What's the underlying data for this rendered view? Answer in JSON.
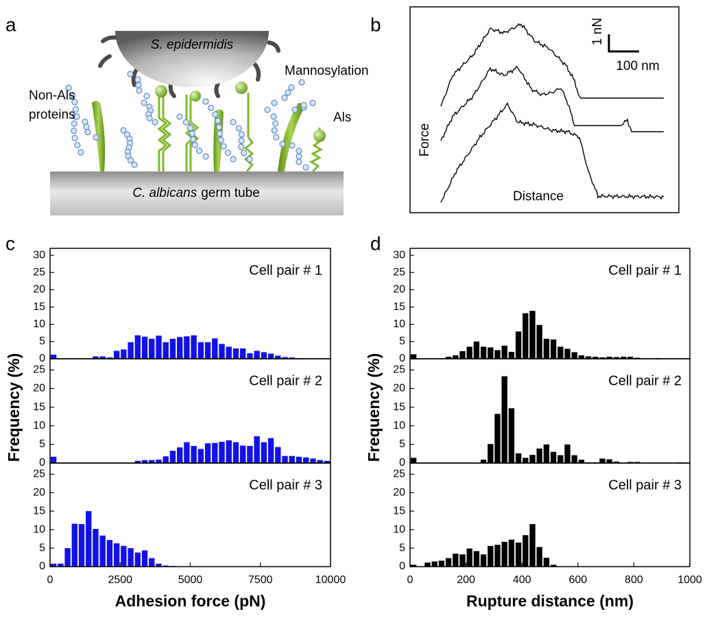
{
  "panel_labels": [
    "a",
    "b",
    "c",
    "d"
  ],
  "diagram": {
    "cell_top": "S. epidermidis",
    "modification": "Mannosylation",
    "proteins": [
      "Non-Als",
      "proteins"
    ],
    "adhesin": "Als",
    "substrate_species": "C. albicans",
    "substrate_rest": "germ tube"
  },
  "force_curves": {
    "y_label": "Force",
    "x_label": "Distance",
    "scale_y": "1 nN",
    "scale_x": "100 nm"
  },
  "chart_data": [
    {
      "type": "histogram",
      "annotation": "Cell pair # 1",
      "color": "#1212e6",
      "bins": [
        0,
        250,
        500,
        750,
        1000,
        1250,
        1500,
        1750,
        2000,
        2250,
        2500,
        2750,
        3000,
        3250,
        3500,
        3750,
        4000,
        4250,
        4500,
        4750,
        5000,
        5250,
        5500,
        5750,
        6000,
        6250,
        6500,
        6750,
        7000,
        7250,
        7500,
        7750,
        8000,
        8250,
        8500,
        8750,
        9000,
        9250,
        9500,
        9750,
        10000
      ],
      "values": [
        1.2,
        0,
        0,
        0,
        0,
        0,
        0.7,
        0.7,
        0.4,
        2.3,
        2.7,
        4.8,
        6.8,
        6.4,
        5.8,
        6.7,
        4.8,
        5.8,
        6.3,
        6.5,
        6.8,
        4.8,
        4.8,
        5.9,
        4.3,
        3.5,
        3.0,
        3.0,
        1.6,
        2.3,
        1.9,
        1.5,
        0.9,
        0.5,
        0.4,
        0.2,
        0,
        0,
        0,
        0
      ],
      "xlim": [
        0,
        10000
      ],
      "ylim": [
        0,
        32
      ],
      "yticks": [
        0,
        5,
        10,
        15,
        20,
        25,
        30
      ]
    },
    {
      "type": "histogram",
      "annotation": "Cell pair # 2",
      "color": "#1212e6",
      "y_label": "Frequency (%)",
      "bins": [
        0,
        250,
        500,
        750,
        1000,
        1250,
        1500,
        1750,
        2000,
        2250,
        2500,
        2750,
        3000,
        3250,
        3500,
        3750,
        4000,
        4250,
        4500,
        4750,
        5000,
        5250,
        5500,
        5750,
        6000,
        6250,
        6500,
        6750,
        7000,
        7250,
        7500,
        7750,
        8000,
        8250,
        8500,
        8750,
        9000,
        9250,
        9500,
        9750,
        10000
      ],
      "values": [
        1.7,
        0,
        0,
        0,
        0,
        0,
        0,
        0,
        0,
        0,
        0,
        0,
        0.6,
        0.8,
        0.8,
        0.9,
        1.8,
        3.3,
        4.2,
        5.6,
        4.6,
        3.8,
        5.3,
        5.4,
        5.7,
        6.1,
        5.6,
        4.7,
        4.6,
        7.2,
        5.6,
        6.7,
        4.3,
        1.9,
        1.9,
        1.7,
        1.5,
        1.2,
        0.8,
        0.6
      ],
      "xlim": [
        0,
        10000
      ],
      "ylim": [
        0,
        28
      ],
      "yticks": [
        0,
        5,
        10,
        15,
        20,
        25
      ]
    },
    {
      "type": "histogram",
      "annotation": "Cell pair # 3",
      "color": "#1212e6",
      "x_label": "Adhesion force (pN)",
      "bins": [
        0,
        250,
        500,
        750,
        1000,
        1250,
        1500,
        1750,
        2000,
        2250,
        2500,
        2750,
        3000,
        3250,
        3500,
        3750,
        4000,
        4250,
        4500,
        4750,
        5000,
        5250,
        5500,
        5750,
        6000,
        6250,
        6500,
        6750,
        7000,
        7250,
        7500,
        7750,
        8000,
        8250,
        8500,
        8750,
        9000,
        9250,
        9500,
        9750,
        10000
      ],
      "values": [
        0.8,
        0.8,
        5.0,
        11.6,
        11.5,
        15.0,
        10.2,
        8.4,
        7.2,
        6.3,
        5.6,
        5.0,
        3.8,
        4.4,
        2.3,
        0.8,
        0.3,
        0.2,
        0.1,
        0,
        0,
        0,
        0,
        0,
        0,
        0,
        0,
        0,
        0,
        0,
        0,
        0,
        0,
        0,
        0,
        0,
        0,
        0,
        0,
        0
      ],
      "xlim": [
        0,
        10000
      ],
      "xticks": [
        0,
        2500,
        5000,
        7500,
        10000
      ],
      "ylim": [
        0,
        28
      ],
      "yticks": [
        0,
        5,
        10,
        15,
        20,
        25
      ]
    },
    {
      "type": "histogram",
      "annotation": "Cell pair # 1",
      "color": "#000000",
      "bins": [
        0,
        25,
        50,
        75,
        100,
        125,
        150,
        175,
        200,
        225,
        250,
        275,
        300,
        325,
        350,
        375,
        400,
        425,
        450,
        475,
        500,
        525,
        550,
        575,
        600,
        625,
        650,
        675,
        700,
        725,
        750,
        775,
        800,
        825,
        850,
        875,
        900,
        925,
        950,
        975,
        1000
      ],
      "values": [
        1.3,
        0,
        0,
        0,
        0,
        0.6,
        1.0,
        2.2,
        3.5,
        5.0,
        3.5,
        3.3,
        2.5,
        3.8,
        2.0,
        7.9,
        13.2,
        13.9,
        9.8,
        5.8,
        5.6,
        3.5,
        2.9,
        1.9,
        1.0,
        0.7,
        0.6,
        0.4,
        0.6,
        0.5,
        0.6,
        0.6,
        0.3,
        0.1,
        0,
        0.2,
        0,
        0,
        0.1,
        0
      ],
      "xlim": [
        0,
        1000
      ],
      "ylim": [
        0,
        32
      ],
      "yticks": [
        0,
        5,
        10,
        15,
        20,
        25,
        30
      ]
    },
    {
      "type": "histogram",
      "annotation": "Cell pair # 2",
      "color": "#000000",
      "y_label": "Frequency (%)",
      "bins": [
        0,
        25,
        50,
        75,
        100,
        125,
        150,
        175,
        200,
        225,
        250,
        275,
        300,
        325,
        350,
        375,
        400,
        425,
        450,
        475,
        500,
        525,
        550,
        575,
        600,
        625,
        650,
        675,
        700,
        725,
        750,
        775,
        800,
        825,
        850,
        875,
        900,
        925,
        950,
        975,
        1000
      ],
      "values": [
        1.4,
        0,
        0,
        0,
        0,
        0,
        0,
        0,
        0,
        0,
        0.9,
        5.1,
        13.2,
        23.3,
        14.7,
        2.6,
        1.4,
        2.2,
        3.9,
        5.0,
        3.0,
        2.1,
        5.0,
        2.1,
        0.9,
        0.2,
        0.2,
        1.2,
        1.0,
        0.4,
        0,
        0.3,
        0.3,
        0,
        0,
        0,
        0,
        0,
        0.2,
        0
      ],
      "xlim": [
        0,
        1000
      ],
      "ylim": [
        0,
        28
      ],
      "yticks": [
        0,
        5,
        10,
        15,
        20,
        25
      ]
    },
    {
      "type": "histogram",
      "annotation": "Cell pair # 3",
      "color": "#000000",
      "x_label": "Rupture distance (nm)",
      "bins": [
        0,
        25,
        50,
        75,
        100,
        125,
        150,
        175,
        200,
        225,
        250,
        275,
        300,
        325,
        350,
        375,
        400,
        425,
        450,
        475,
        500,
        525,
        550,
        575,
        600,
        625,
        650,
        675,
        700,
        725,
        750,
        775,
        800,
        825,
        850,
        875,
        900,
        925,
        950,
        975,
        1000
      ],
      "values": [
        0.5,
        0,
        1.1,
        1.4,
        1.6,
        2.3,
        3.5,
        3.3,
        4.9,
        4.2,
        3.3,
        5.6,
        5.9,
        6.7,
        7.3,
        6.5,
        8.5,
        11.5,
        5.3,
        2.4,
        0.5,
        0,
        0,
        0,
        0,
        0,
        0,
        0,
        0,
        0,
        0,
        0,
        0,
        0,
        0,
        0,
        0,
        0,
        0,
        0
      ],
      "xlim": [
        0,
        1000
      ],
      "xticks": [
        0,
        200,
        400,
        600,
        800,
        1000
      ],
      "ylim": [
        0,
        28
      ],
      "yticks": [
        0,
        5,
        10,
        15,
        20,
        25
      ]
    }
  ]
}
